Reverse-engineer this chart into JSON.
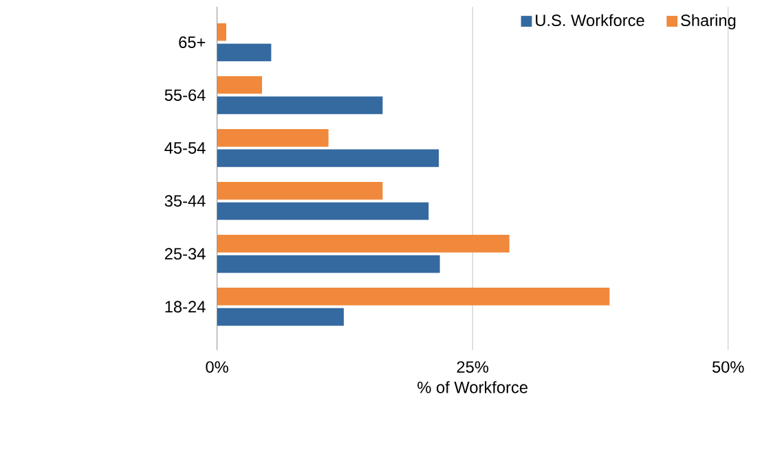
{
  "chart_data": {
    "type": "bar",
    "orientation": "horizontal",
    "xlabel": "% of Workforce",
    "categories": [
      "65+",
      "55-64",
      "45-54",
      "35-44",
      "25-34",
      "18-24"
    ],
    "series": [
      {
        "name": "U.S. Workforce",
        "color": "#356aa0",
        "values": [
          5.3,
          16.2,
          21.7,
          20.7,
          21.8,
          12.4
        ]
      },
      {
        "name": "Sharing",
        "color": "#f0893b",
        "values": [
          0.9,
          4.4,
          10.9,
          16.2,
          28.6,
          38.4
        ]
      }
    ],
    "xlim": [
      0,
      50
    ],
    "xticks": [
      {
        "value": 0,
        "label": "0%"
      },
      {
        "value": 25,
        "label": "25%"
      },
      {
        "value": 50,
        "label": "50%"
      }
    ],
    "grid": "x",
    "legend": "top right"
  }
}
